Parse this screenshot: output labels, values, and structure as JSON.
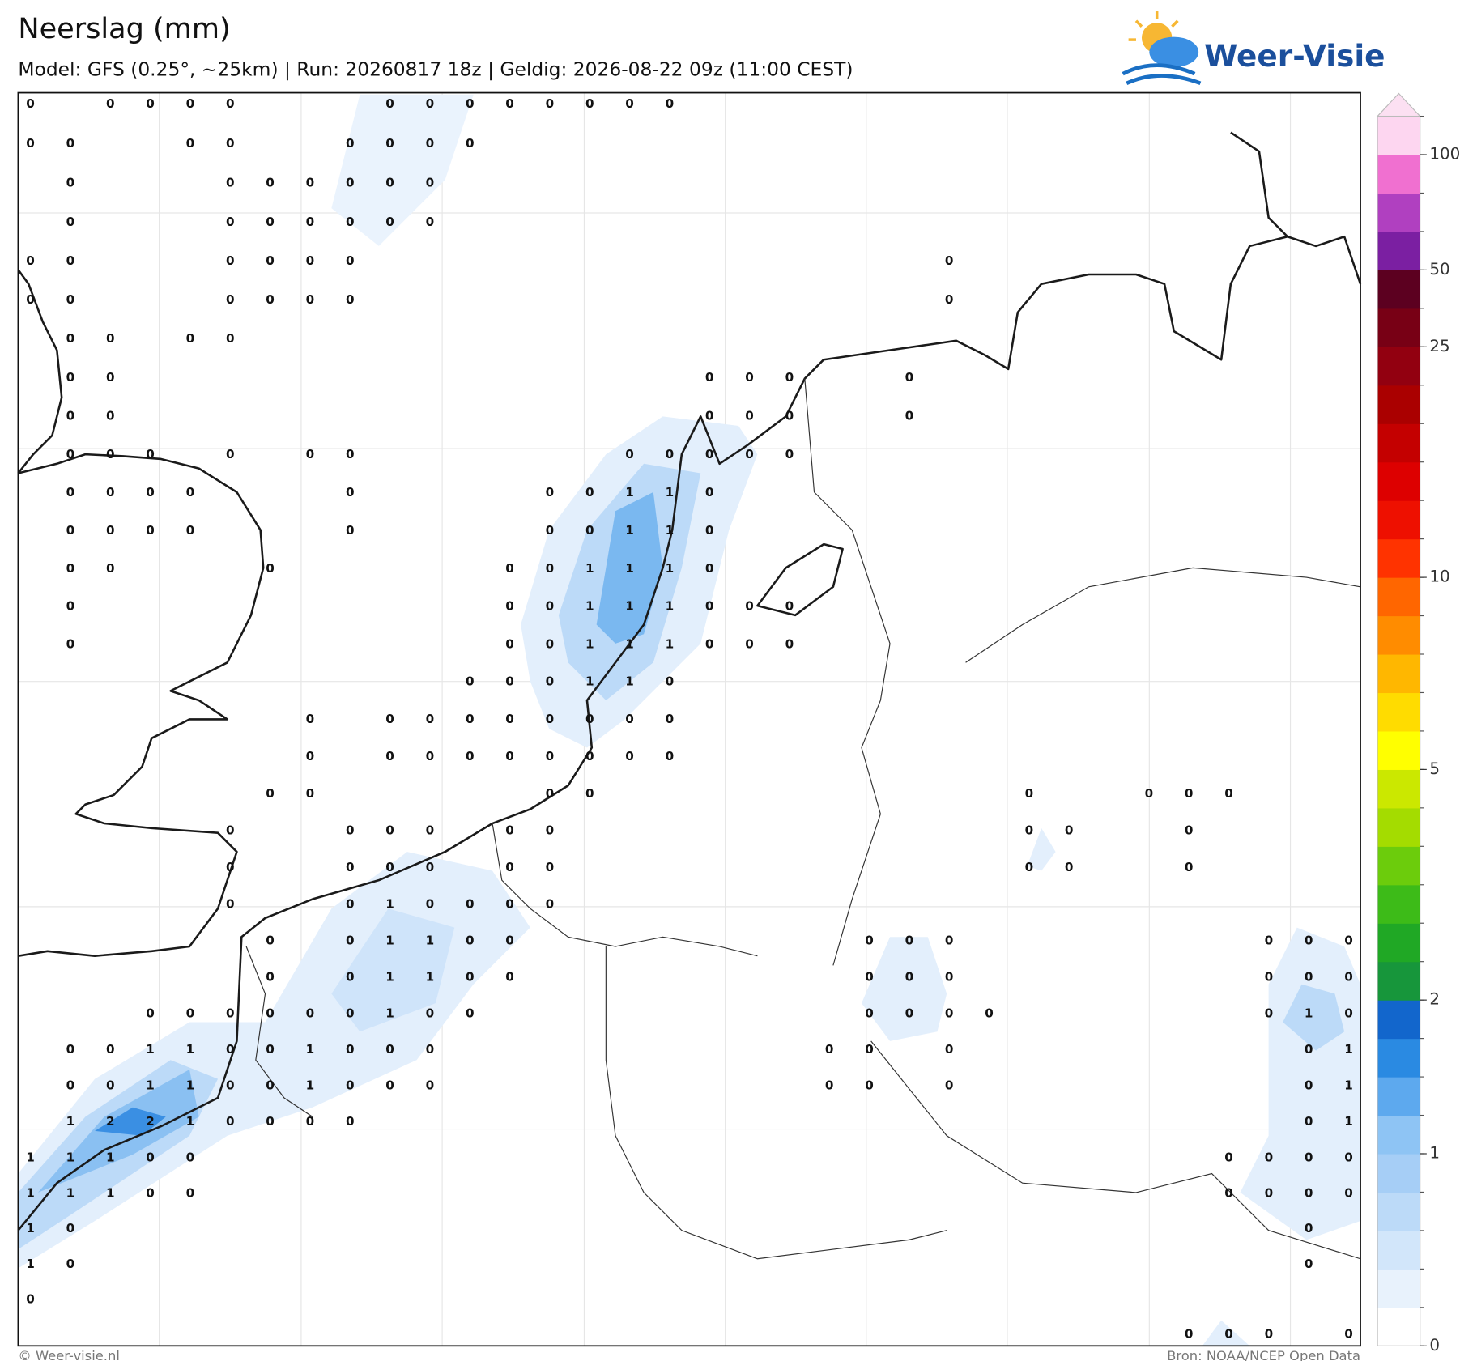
{
  "header": {
    "title": "Neerslag (mm)",
    "subtitle": "Model: GFS (0.25°, ~25km)  |  Run: 20260817 18z  |  Geldig: 2026-08-22 09z (11:00 CEST)"
  },
  "logo": "Weer-Visie",
  "map": {
    "grid": [
      [
        0,
        null,
        0,
        0,
        0,
        0,
        null,
        null,
        null,
        0,
        0,
        0,
        0,
        0,
        0,
        0,
        0,
        null,
        null,
        null,
        null,
        null,
        null,
        null,
        null,
        null,
        null,
        null,
        null,
        null,
        null,
        null,
        null,
        null
      ],
      [
        0,
        0,
        null,
        null,
        0,
        0,
        null,
        null,
        0,
        0,
        0,
        0,
        null,
        null,
        null,
        null,
        null,
        null,
        null,
        null,
        null,
        null,
        null,
        null,
        null,
        null,
        null,
        null,
        null,
        null,
        null,
        null,
        null,
        null
      ],
      [
        null,
        0,
        null,
        null,
        null,
        0,
        0,
        0,
        0,
        0,
        0,
        null,
        null,
        null,
        null,
        null,
        null,
        null,
        null,
        null,
        null,
        null,
        null,
        null,
        null,
        null,
        null,
        null,
        null,
        null,
        null,
        null,
        null,
        null
      ],
      [
        null,
        0,
        null,
        null,
        null,
        0,
        0,
        0,
        0,
        0,
        0,
        null,
        null,
        null,
        null,
        null,
        null,
        null,
        null,
        null,
        null,
        null,
        null,
        null,
        null,
        null,
        null,
        null,
        null,
        null,
        null,
        null,
        null,
        null
      ],
      [
        0,
        0,
        null,
        null,
        null,
        0,
        0,
        0,
        0,
        null,
        null,
        null,
        null,
        null,
        null,
        null,
        null,
        null,
        null,
        null,
        null,
        null,
        null,
        0,
        null,
        null,
        null,
        null,
        null,
        null,
        null,
        null,
        null,
        null
      ],
      [
        0,
        0,
        null,
        null,
        null,
        0,
        0,
        0,
        0,
        null,
        null,
        null,
        null,
        null,
        null,
        null,
        null,
        null,
        null,
        null,
        null,
        null,
        null,
        0,
        null,
        null,
        null,
        null,
        null,
        null,
        null,
        null,
        null,
        null
      ],
      [
        null,
        0,
        0,
        null,
        0,
        0,
        null,
        null,
        null,
        null,
        null,
        null,
        null,
        null,
        null,
        null,
        null,
        null,
        null,
        null,
        null,
        null,
        null,
        null,
        null,
        null,
        null,
        null,
        null,
        null,
        null,
        null,
        null,
        null
      ],
      [
        null,
        0,
        0,
        null,
        null,
        null,
        null,
        null,
        null,
        null,
        null,
        null,
        null,
        null,
        null,
        null,
        null,
        0,
        0,
        0,
        null,
        null,
        0,
        null,
        null,
        null,
        null,
        null,
        null,
        null,
        null,
        null,
        null,
        null
      ],
      [
        null,
        0,
        0,
        null,
        null,
        null,
        null,
        null,
        null,
        null,
        null,
        null,
        null,
        null,
        null,
        null,
        null,
        0,
        0,
        0,
        null,
        null,
        0,
        null,
        null,
        null,
        null,
        null,
        null,
        null,
        null,
        null,
        null,
        null
      ],
      [
        null,
        0,
        0,
        0,
        null,
        0,
        null,
        0,
        0,
        null,
        null,
        null,
        null,
        null,
        null,
        0,
        0,
        0,
        0,
        0,
        null,
        null,
        null,
        null,
        null,
        null,
        null,
        null,
        null,
        null,
        null,
        null,
        null,
        null
      ],
      [
        null,
        0,
        0,
        0,
        0,
        null,
        null,
        null,
        0,
        null,
        null,
        null,
        null,
        0,
        0,
        1,
        1,
        0,
        null,
        null,
        null,
        null,
        null,
        null,
        null,
        null,
        null,
        null,
        null,
        null,
        null,
        null,
        null,
        null
      ],
      [
        null,
        0,
        0,
        0,
        0,
        null,
        null,
        null,
        0,
        null,
        null,
        null,
        null,
        0,
        0,
        1,
        1,
        0,
        null,
        null,
        null,
        null,
        null,
        null,
        null,
        null,
        null,
        null,
        null,
        null,
        null,
        null,
        null,
        null
      ],
      [
        null,
        0,
        0,
        null,
        null,
        null,
        0,
        null,
        null,
        null,
        null,
        null,
        0,
        0,
        1,
        1,
        1,
        0,
        null,
        null,
        null,
        null,
        null,
        null,
        null,
        null,
        null,
        null,
        null,
        null,
        null,
        null,
        null,
        null
      ],
      [
        null,
        0,
        null,
        null,
        null,
        null,
        null,
        null,
        null,
        null,
        null,
        null,
        0,
        0,
        1,
        1,
        1,
        0,
        0,
        0,
        null,
        null,
        null,
        null,
        null,
        null,
        null,
        null,
        null,
        null,
        null,
        null,
        null,
        null
      ],
      [
        null,
        0,
        null,
        null,
        null,
        null,
        null,
        null,
        null,
        null,
        null,
        null,
        0,
        0,
        1,
        1,
        1,
        0,
        0,
        0,
        null,
        null,
        null,
        null,
        null,
        null,
        null,
        null,
        null,
        null,
        null,
        null,
        null,
        null
      ],
      [
        null,
        null,
        null,
        null,
        null,
        null,
        null,
        null,
        null,
        null,
        null,
        0,
        0,
        0,
        1,
        1,
        0,
        null,
        null,
        null,
        null,
        null,
        null,
        null,
        null,
        null,
        null,
        null,
        null,
        null,
        null,
        null,
        null,
        null
      ],
      [
        null,
        null,
        null,
        null,
        null,
        null,
        null,
        0,
        null,
        0,
        0,
        0,
        0,
        0,
        0,
        0,
        0,
        null,
        null,
        null,
        null,
        null,
        null,
        null,
        null,
        null,
        null,
        null,
        null,
        null,
        null,
        null,
        null,
        null
      ],
      [
        null,
        null,
        null,
        null,
        null,
        null,
        null,
        0,
        null,
        0,
        0,
        0,
        0,
        0,
        0,
        0,
        0,
        null,
        null,
        null,
        null,
        null,
        null,
        null,
        null,
        null,
        null,
        null,
        null,
        null,
        null,
        null,
        null,
        null
      ],
      [
        null,
        null,
        null,
        null,
        null,
        null,
        0,
        0,
        null,
        null,
        null,
        null,
        null,
        0,
        0,
        null,
        null,
        null,
        null,
        null,
        null,
        null,
        null,
        null,
        null,
        0,
        null,
        null,
        0,
        0,
        0,
        null,
        null,
        null
      ],
      [
        null,
        null,
        null,
        null,
        null,
        0,
        null,
        null,
        0,
        0,
        0,
        null,
        0,
        0,
        null,
        null,
        null,
        null,
        null,
        null,
        null,
        null,
        null,
        null,
        null,
        0,
        0,
        null,
        null,
        0,
        null,
        null,
        null,
        null
      ],
      [
        null,
        null,
        null,
        null,
        null,
        0,
        null,
        null,
        0,
        0,
        0,
        null,
        0,
        0,
        null,
        null,
        null,
        null,
        null,
        null,
        null,
        null,
        null,
        null,
        null,
        0,
        0,
        null,
        null,
        0,
        null,
        null,
        null,
        null
      ],
      [
        null,
        null,
        null,
        null,
        null,
        0,
        null,
        null,
        0,
        1,
        0,
        0,
        0,
        0,
        null,
        null,
        null,
        null,
        null,
        null,
        null,
        null,
        null,
        null,
        null,
        null,
        null,
        null,
        null,
        null,
        null,
        null,
        null,
        null
      ],
      [
        null,
        null,
        null,
        null,
        null,
        null,
        0,
        null,
        0,
        1,
        1,
        0,
        0,
        null,
        null,
        null,
        null,
        null,
        null,
        null,
        null,
        0,
        0,
        0,
        null,
        null,
        null,
        null,
        null,
        null,
        null,
        0,
        0,
        0
      ],
      [
        null,
        null,
        null,
        null,
        null,
        null,
        0,
        null,
        0,
        1,
        1,
        0,
        0,
        null,
        null,
        null,
        null,
        null,
        null,
        null,
        null,
        0,
        0,
        0,
        null,
        null,
        null,
        null,
        null,
        null,
        null,
        0,
        0,
        0
      ],
      [
        null,
        null,
        null,
        0,
        0,
        0,
        0,
        0,
        0,
        1,
        0,
        0,
        null,
        null,
        null,
        null,
        null,
        null,
        null,
        null,
        null,
        0,
        0,
        0,
        0,
        null,
        null,
        null,
        null,
        null,
        null,
        0,
        1,
        0
      ],
      [
        null,
        0,
        0,
        1,
        1,
        0,
        0,
        1,
        0,
        0,
        0,
        null,
        null,
        null,
        null,
        null,
        null,
        null,
        null,
        null,
        0,
        0,
        null,
        0,
        null,
        null,
        null,
        null,
        null,
        null,
        null,
        null,
        0,
        1
      ],
      [
        null,
        0,
        0,
        1,
        1,
        0,
        0,
        1,
        0,
        0,
        0,
        null,
        null,
        null,
        null,
        null,
        null,
        null,
        null,
        null,
        0,
        0,
        null,
        0,
        null,
        null,
        null,
        null,
        null,
        null,
        null,
        null,
        0,
        1
      ],
      [
        null,
        1,
        2,
        2,
        1,
        0,
        0,
        0,
        0,
        null,
        null,
        null,
        null,
        null,
        null,
        null,
        null,
        null,
        null,
        null,
        null,
        null,
        null,
        null,
        null,
        null,
        null,
        null,
        null,
        null,
        null,
        null,
        0,
        1
      ],
      [
        1,
        1,
        1,
        0,
        0,
        null,
        null,
        null,
        null,
        null,
        null,
        null,
        null,
        null,
        null,
        null,
        null,
        null,
        null,
        null,
        null,
        null,
        null,
        null,
        null,
        null,
        null,
        null,
        null,
        null,
        0,
        0,
        0,
        0
      ],
      [
        1,
        1,
        1,
        0,
        0,
        null,
        null,
        null,
        null,
        null,
        null,
        null,
        null,
        null,
        null,
        null,
        null,
        null,
        null,
        null,
        null,
        null,
        null,
        null,
        null,
        null,
        null,
        null,
        null,
        null,
        0,
        0,
        0,
        0
      ],
      [
        1,
        0,
        null,
        null,
        null,
        null,
        null,
        null,
        null,
        null,
        null,
        null,
        null,
        null,
        null,
        null,
        null,
        null,
        null,
        null,
        null,
        null,
        null,
        null,
        null,
        null,
        null,
        null,
        null,
        null,
        null,
        null,
        0,
        null
      ],
      [
        1,
        0,
        null,
        null,
        null,
        null,
        null,
        null,
        null,
        null,
        null,
        null,
        null,
        null,
        null,
        null,
        null,
        null,
        null,
        null,
        null,
        null,
        null,
        null,
        null,
        null,
        null,
        null,
        null,
        null,
        null,
        null,
        0,
        null
      ],
      [
        0,
        null,
        null,
        null,
        null,
        null,
        null,
        null,
        null,
        null,
        null,
        null,
        null,
        null,
        null,
        null,
        null,
        null,
        null,
        null,
        null,
        null,
        null,
        null,
        null,
        null,
        null,
        null,
        null,
        null,
        null,
        null,
        null,
        null
      ],
      [
        null,
        null,
        null,
        null,
        null,
        null,
        null,
        null,
        null,
        null,
        null,
        null,
        null,
        null,
        null,
        null,
        null,
        null,
        null,
        null,
        null,
        null,
        null,
        null,
        null,
        null,
        null,
        null,
        null,
        0,
        0,
        0,
        null,
        0
      ]
    ]
  },
  "colorbar": {
    "levels": [
      0,
      0.1,
      0.3,
      0.5,
      0.75,
      1,
      1.25,
      1.5,
      1.75,
      2,
      2.5,
      3,
      3.5,
      4,
      4.5,
      5,
      6,
      7,
      8,
      9,
      10,
      12,
      14,
      16,
      18,
      20,
      25,
      35,
      50,
      65,
      80,
      100,
      125
    ],
    "colors": [
      "#ffffff",
      "#e8f2fc",
      "#d2e6fa",
      "#bcdaf8",
      "#a6cef6",
      "#8ec4f4",
      "#5da9ee",
      "#2a8ae2",
      "#1266cc",
      "#17963b",
      "#20a825",
      "#3dbb18",
      "#6ccc0c",
      "#a4dc00",
      "#cbe800",
      "#ffff00",
      "#ffdc00",
      "#ffb700",
      "#ff8c00",
      "#ff6600",
      "#ff3300",
      "#ee1000",
      "#dd0000",
      "#c40000",
      "#aa0000",
      "#920010",
      "#780015",
      "#5c0020",
      "#7b1fa2",
      "#b040c0",
      "#f070d0",
      "#fdd6f0"
    ],
    "extend_color": "#fce0f2",
    "ticks": [
      0,
      1,
      2,
      5,
      10,
      25,
      50,
      100
    ]
  },
  "footer": {
    "left": "© Weer-visie.nl",
    "right": "Bron: NOAA/NCEP Open Data"
  }
}
